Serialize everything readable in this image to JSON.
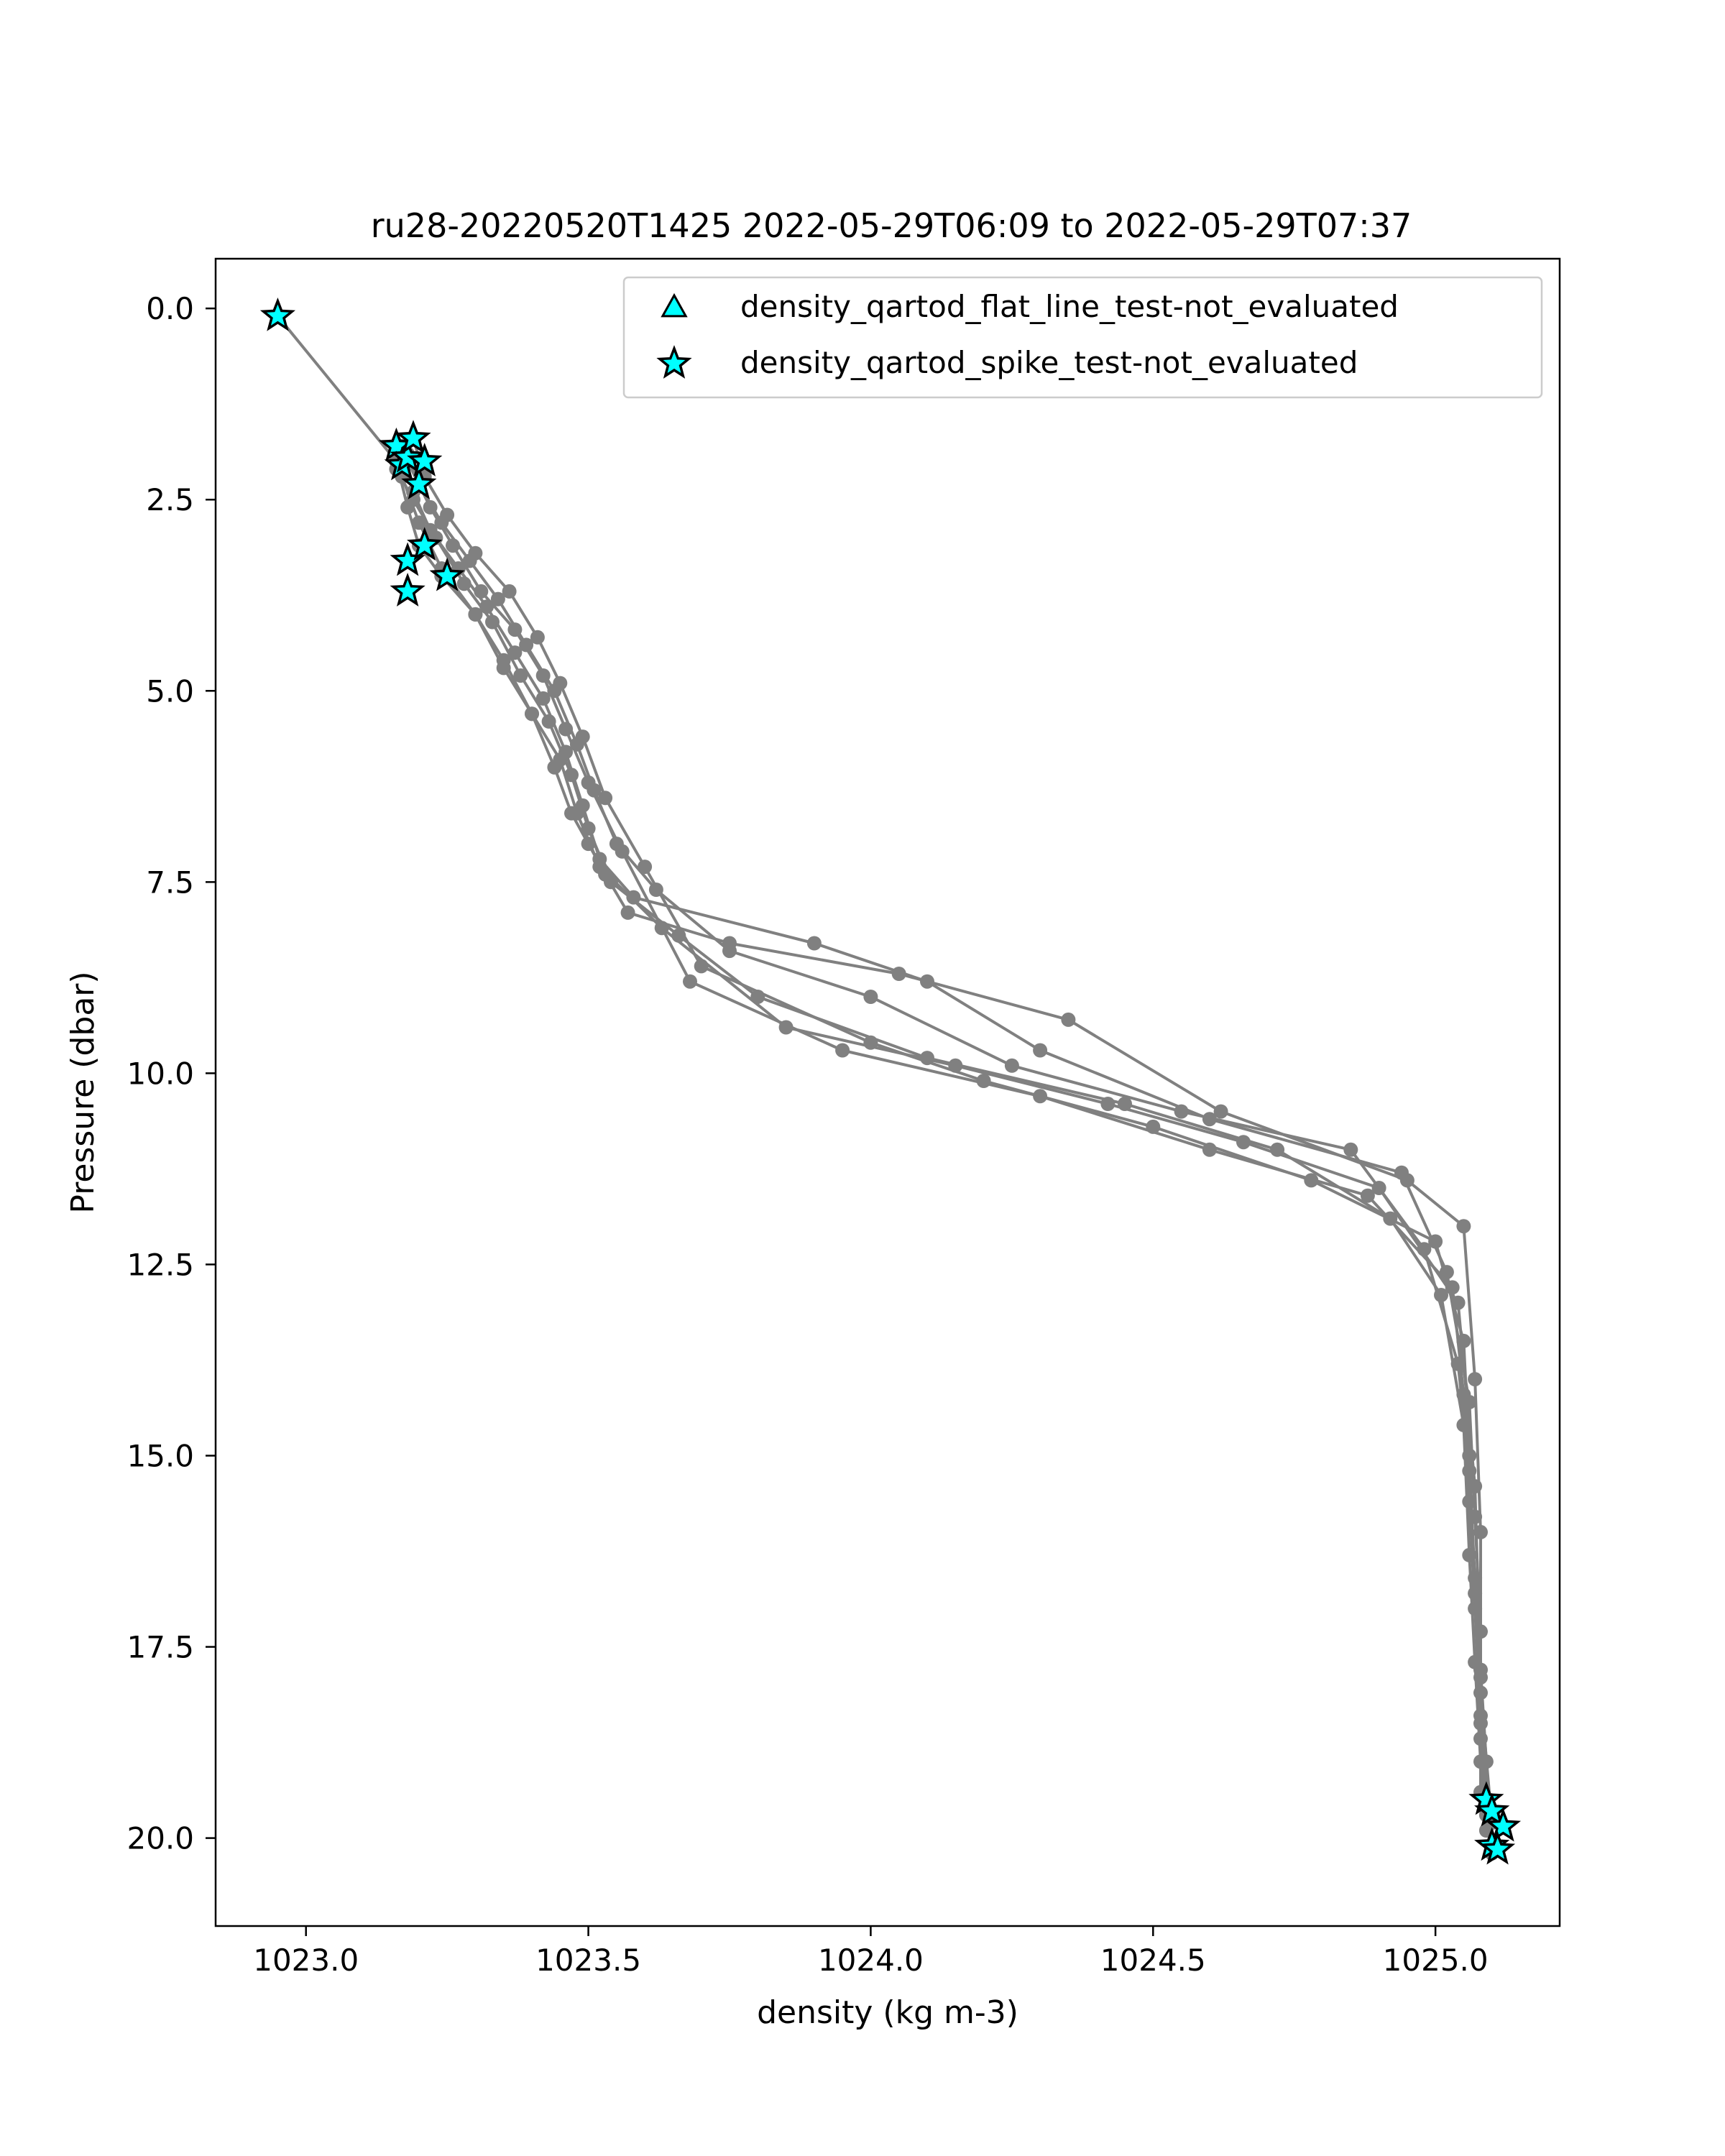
{
  "chart_data": {
    "type": "line",
    "title": "ru28-20220520T1425 2022-05-29T06:09 to 2022-05-29T07:37",
    "xlabel": "density (kg m-3)",
    "ylabel": "Pressure (dbar)",
    "xlim": [
      1022.84,
      1025.22
    ],
    "ylim": [
      21.15,
      -0.65
    ],
    "y_inverted": true,
    "xticks": [
      1023.0,
      1023.5,
      1024.0,
      1024.5,
      1025.0
    ],
    "xtick_labels": [
      "1023.0",
      "1023.5",
      "1024.0",
      "1024.5",
      "1025.0"
    ],
    "yticks": [
      0.0,
      2.5,
      5.0,
      7.5,
      10.0,
      12.5,
      15.0,
      17.5,
      20.0
    ],
    "ytick_labels": [
      "0.0",
      "2.5",
      "5.0",
      "7.5",
      "10.0",
      "12.5",
      "15.0",
      "17.5",
      "20.0"
    ],
    "grid": false,
    "legend_position": "upper right",
    "colors": {
      "profile_line": "#808080",
      "flag_fill": "#00ffff",
      "flag_edge": "#000000"
    },
    "legend": [
      {
        "label": "density_qartod_flat_line_test-not_evaluated",
        "marker": "triangle"
      },
      {
        "label": "density_qartod_spike_test-not_evaluated",
        "marker": "star"
      }
    ],
    "series": [
      {
        "x": [
          1022.95,
          1023.16,
          1023.18,
          1023.2,
          1023.24,
          1023.3,
          1023.35,
          1023.4,
          1023.44,
          1023.47,
          1023.5,
          1023.53,
          1023.57,
          1023.75,
          1024.05,
          1024.35,
          1024.62,
          1024.95,
          1025.05,
          1025.07,
          1025.08,
          1025.08,
          1025.09,
          1025.09,
          1025.1
        ],
        "y": [
          0.1,
          2.0,
          2.6,
          3.1,
          3.5,
          4.0,
          4.6,
          5.3,
          6.0,
          6.6,
          7.0,
          7.4,
          7.9,
          8.3,
          8.7,
          9.3,
          10.5,
          11.4,
          12.0,
          14.0,
          16.0,
          17.8,
          19.0,
          19.6,
          20.1
        ]
      },
      {
        "x": [
          1023.17,
          1023.19,
          1023.22,
          1023.27,
          1023.32,
          1023.37,
          1023.42,
          1023.46,
          1023.49,
          1023.52,
          1023.58,
          1023.9,
          1024.1,
          1024.3,
          1024.6,
          1024.94,
          1025.02,
          1025.06,
          1025.07,
          1025.08,
          1025.08,
          1025.09
        ],
        "y": [
          1.8,
          2.4,
          2.9,
          3.4,
          3.9,
          4.5,
          5.1,
          5.8,
          6.5,
          7.2,
          7.7,
          8.3,
          8.8,
          9.7,
          10.6,
          11.3,
          12.6,
          14.3,
          15.8,
          17.3,
          18.7,
          19.5
        ]
      },
      {
        "x": [
          1023.18,
          1023.2,
          1023.24,
          1023.29,
          1023.34,
          1023.39,
          1023.44,
          1023.48,
          1023.51,
          1023.55,
          1023.62,
          1023.75,
          1024.0,
          1024.25,
          1024.55,
          1024.85,
          1024.98,
          1025.04,
          1025.06,
          1025.07,
          1025.08,
          1025.1
        ],
        "y": [
          1.9,
          2.3,
          2.8,
          3.3,
          3.8,
          4.4,
          5.0,
          5.7,
          6.3,
          7.0,
          7.6,
          8.4,
          9.0,
          9.9,
          10.5,
          11.0,
          12.3,
          13.8,
          15.2,
          16.6,
          18.1,
          19.8
        ]
      },
      {
        "x": [
          1023.16,
          1023.19,
          1023.23,
          1023.28,
          1023.33,
          1023.38,
          1023.43,
          1023.47,
          1023.5,
          1023.54,
          1023.66,
          1023.8,
          1024.1,
          1024.45,
          1024.72,
          1024.92,
          1025.01,
          1025.05,
          1025.06,
          1025.07,
          1025.08,
          1025.1
        ],
        "y": [
          2.1,
          2.5,
          3.0,
          3.6,
          4.1,
          4.8,
          5.4,
          6.1,
          6.8,
          7.5,
          8.2,
          9.0,
          9.8,
          10.4,
          11.0,
          11.9,
          12.9,
          14.6,
          16.3,
          17.7,
          19.0,
          20.2
        ]
      },
      {
        "x": [
          1023.19,
          1023.21,
          1023.25,
          1023.3,
          1023.36,
          1023.41,
          1023.45,
          1023.49,
          1023.53,
          1023.6,
          1023.7,
          1024.0,
          1024.2,
          1024.5,
          1024.78,
          1025.0,
          1025.05,
          1025.06,
          1025.07,
          1025.08,
          1025.08
        ],
        "y": [
          1.7,
          2.2,
          2.7,
          3.2,
          3.7,
          4.3,
          4.9,
          5.6,
          6.4,
          7.3,
          8.6,
          9.6,
          10.1,
          10.7,
          11.4,
          12.2,
          13.5,
          15.0,
          16.8,
          18.4,
          19.4
        ]
      },
      {
        "x": [
          1023.18,
          1023.22,
          1023.26,
          1023.31,
          1023.37,
          1023.42,
          1023.46,
          1023.5,
          1023.56,
          1023.68,
          1023.95,
          1024.3,
          1024.6,
          1024.88,
          1025.03,
          1025.05,
          1025.06,
          1025.07,
          1025.08,
          1025.09
        ],
        "y": [
          2.0,
          2.6,
          3.1,
          3.7,
          4.2,
          4.8,
          5.5,
          6.2,
          7.1,
          8.8,
          9.7,
          10.3,
          11.0,
          11.6,
          12.8,
          14.2,
          15.6,
          17.0,
          18.5,
          19.9
        ]
      },
      {
        "x": [
          1023.17,
          1023.2,
          1023.24,
          1023.3,
          1023.35,
          1023.4,
          1023.45,
          1023.48,
          1023.52,
          1023.63,
          1023.85,
          1024.15,
          1024.42,
          1024.66,
          1024.9,
          1025.04,
          1025.07,
          1025.08,
          1025.09
        ],
        "y": [
          2.2,
          2.8,
          3.4,
          4.0,
          4.7,
          5.3,
          5.9,
          6.6,
          7.3,
          8.1,
          9.4,
          9.9,
          10.4,
          10.9,
          11.5,
          13.0,
          15.4,
          17.9,
          19.7
        ]
      }
    ],
    "flags": {
      "density_qartod_flat_line_test-not_evaluated": [],
      "density_qartod_spike_test-not_evaluated": {
        "x": [
          1022.95,
          1023.16,
          1023.17,
          1023.18,
          1023.19,
          1023.2,
          1023.21,
          1023.18,
          1023.21,
          1023.25,
          1023.18,
          1025.09,
          1025.1,
          1025.12,
          1025.1,
          1025.11
        ],
        "y": [
          0.1,
          1.8,
          2.05,
          1.95,
          1.7,
          2.3,
          2.0,
          3.3,
          3.1,
          3.5,
          3.7,
          19.5,
          19.65,
          19.85,
          20.1,
          20.15
        ]
      }
    }
  }
}
